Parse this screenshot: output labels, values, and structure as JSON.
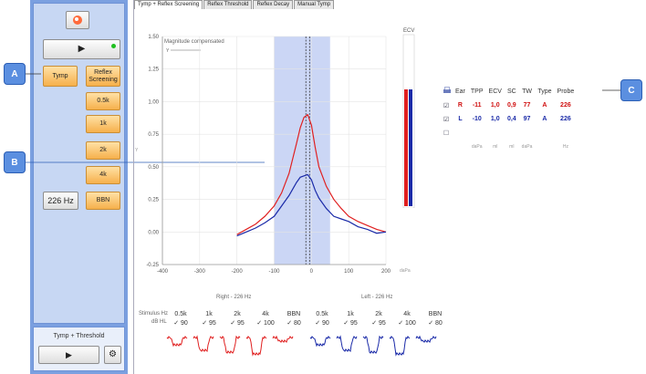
{
  "left": {
    "start_label": "▶",
    "tymp_label": "Tymp",
    "reflex_label": "Reflex Screening",
    "freqs": [
      "0.5k",
      "1k",
      "2k",
      "4k",
      "BBN"
    ],
    "probe_hz": "226 Hz"
  },
  "bottom": {
    "title": "Tymp + Threshold",
    "start_label": "▶"
  },
  "callouts": {
    "a": "A",
    "b": "B",
    "c": "C"
  },
  "tabs": [
    "Tymp + Reflex Screening",
    "Reflex Threshold",
    "Reflex Decay",
    "Manual Tymp"
  ],
  "chart_data": {
    "type": "line",
    "annotation": "Magnitude compensated",
    "legend_symbol": "Y",
    "y_axis_label": "Y",
    "x_unit": "daPa",
    "x_ticks": [
      -400,
      -300,
      -200,
      -100,
      0,
      100,
      200
    ],
    "y_ticks": [
      -0.25,
      0,
      0.25,
      0.5,
      0.75,
      1,
      1.25,
      1.5
    ],
    "xlim": [
      -400,
      200
    ],
    "ylim": [
      -0.25,
      1.5
    ],
    "shaded_range": [
      -100,
      50
    ],
    "dashed_lines": [
      -15,
      -5
    ],
    "series": [
      {
        "color": "#e02020",
        "x": [
          -200,
          -175,
          -150,
          -125,
          -100,
          -80,
          -60,
          -40,
          -30,
          -20,
          -10,
          0,
          10,
          20,
          40,
          60,
          80,
          100,
          125,
          150,
          175,
          200
        ],
        "y": [
          -0.02,
          0.02,
          0.06,
          0.12,
          0.2,
          0.3,
          0.45,
          0.68,
          0.8,
          0.88,
          0.9,
          0.82,
          0.65,
          0.5,
          0.35,
          0.25,
          0.18,
          0.12,
          0.08,
          0.05,
          0.02,
          0.0
        ]
      },
      {
        "color": "#1a2aa8",
        "x": [
          -200,
          -175,
          -150,
          -125,
          -100,
          -80,
          -60,
          -40,
          -30,
          -20,
          -10,
          0,
          10,
          20,
          40,
          60,
          80,
          100,
          125,
          150,
          175,
          200
        ],
        "y": [
          -0.03,
          0.0,
          0.03,
          0.07,
          0.12,
          0.2,
          0.28,
          0.38,
          0.42,
          0.43,
          0.44,
          0.4,
          0.32,
          0.26,
          0.18,
          0.12,
          0.1,
          0.08,
          0.04,
          0.02,
          -0.01,
          0.0
        ]
      }
    ]
  },
  "ecv_label": "ECV",
  "ear_table": {
    "headers": [
      "Ear",
      "TPP",
      "ECV",
      "SC",
      "TW",
      "Type",
      "Probe"
    ],
    "rows": [
      {
        "check": "☑",
        "ear": "R",
        "tpp": "-11",
        "ecv": "1,0",
        "sc": "0,9",
        "tw": "77",
        "type": "A",
        "probe": "226",
        "color": "#d01010"
      },
      {
        "check": "☑",
        "ear": "L",
        "tpp": "-10",
        "ecv": "1,0",
        "sc": "0,4",
        "tw": "97",
        "type": "A",
        "probe": "226",
        "color": "#1a2aa8"
      }
    ],
    "units": [
      "daPa",
      "ml",
      "ml",
      "daPa",
      "Hz"
    ]
  },
  "reflex": {
    "right_title": "Right - 226 Hz",
    "left_title": "Left - 226 Hz",
    "stimulus_label": "Stimulus Hz",
    "dbhl_label": "dB HL",
    "right": [
      [
        "0.5k",
        "✓ 90"
      ],
      [
        "1k",
        "✓ 95"
      ],
      [
        "2k",
        "✓ 95"
      ],
      [
        "4k",
        "✓ 100"
      ],
      [
        "BBN",
        "✓ 80"
      ]
    ],
    "left": [
      [
        "0.5k",
        "✓ 90"
      ],
      [
        "1k",
        "✓ 95"
      ],
      [
        "2k",
        "✓ 95"
      ],
      [
        "4k",
        "✓ 100"
      ],
      [
        "BBN",
        "✓ 80"
      ]
    ]
  }
}
